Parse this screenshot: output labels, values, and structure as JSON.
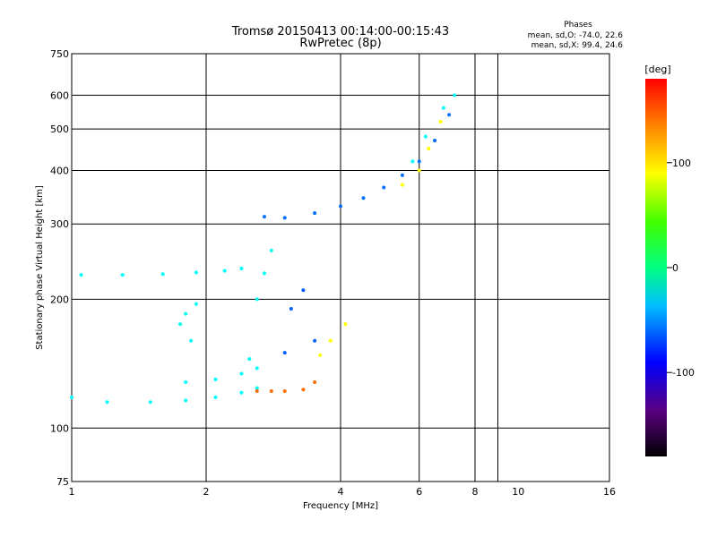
{
  "title": "Tromsø 20150413 00:14:00-00:15:43",
  "subtitle": "RwPretec (8p)",
  "stats": {
    "header": "Phases",
    "line_o": "mean, sd,O: -74.0, 22.6",
    "line_x": "mean, sd,X:  99.4, 24.6"
  },
  "chart_data": {
    "type": "scatter",
    "title": "Tromsø 20150413 00:14:00-00:15:43",
    "subtitle": "RwPretec (8p)",
    "xlabel": "Frequency [MHz]",
    "ylabel": "Stationary phase Virtual Height [km]",
    "x_scale": "log",
    "y_scale": "log",
    "xlim": [
      1,
      16
    ],
    "ylim": [
      75,
      750
    ],
    "x_ticks": [
      1,
      2,
      4,
      6,
      8,
      10,
      16
    ],
    "y_ticks": [
      75,
      100,
      200,
      300,
      400,
      500,
      600,
      750
    ],
    "grid_x": [
      2,
      4,
      6,
      8,
      9
    ],
    "grid_y": [
      100,
      200,
      300,
      400,
      500,
      600
    ],
    "colorbar": {
      "label": "[deg]",
      "range": [
        -180,
        180
      ],
      "ticks": [
        100,
        0,
        -100
      ],
      "colormap": "rainbow"
    },
    "series": [
      {
        "x": [
          1.0,
          1.2,
          1.5,
          1.8,
          2.1,
          2.4,
          2.6
        ],
        "y": [
          118,
          115,
          115,
          116,
          118,
          121,
          124
        ],
        "phase": -60
      },
      {
        "x": [
          1.05,
          1.3,
          1.6,
          1.9,
          2.2,
          2.4
        ],
        "y": [
          228,
          228,
          229,
          231,
          233,
          236
        ],
        "phase": -60
      },
      {
        "x": [
          1.8,
          2.1,
          2.4,
          2.6
        ],
        "y": [
          128,
          130,
          134,
          138
        ],
        "phase": -60
      },
      {
        "x": [
          1.75,
          1.8,
          1.85,
          1.9
        ],
        "y": [
          175,
          185,
          160,
          195
        ],
        "phase": -55
      },
      {
        "x": [
          2.5,
          2.6,
          2.7,
          2.8
        ],
        "y": [
          145,
          200,
          230,
          260
        ],
        "phase": -55
      },
      {
        "x": [
          2.6,
          2.8,
          3.0,
          3.3,
          3.5
        ],
        "y": [
          122,
          122,
          122,
          123,
          128
        ],
        "phase": 145
      },
      {
        "x": [
          3.0,
          3.1,
          3.3,
          3.5
        ],
        "y": [
          150,
          190,
          210,
          160
        ],
        "phase": -110
      },
      {
        "x": [
          3.6,
          3.8,
          4.1
        ],
        "y": [
          148,
          160,
          175
        ],
        "phase": 100
      },
      {
        "x": [
          2.7,
          3.0,
          3.5,
          4.0,
          4.5,
          5.0,
          5.5,
          6.0,
          6.5,
          7.0
        ],
        "y": [
          312,
          310,
          318,
          330,
          345,
          365,
          390,
          420,
          470,
          540
        ],
        "phase": -105
      },
      {
        "x": [
          5.5,
          6.0,
          6.3,
          6.7
        ],
        "y": [
          370,
          400,
          450,
          520
        ],
        "phase": 100
      },
      {
        "x": [
          5.8,
          6.2,
          6.8,
          7.2
        ],
        "y": [
          420,
          480,
          560,
          600
        ],
        "phase": -60
      }
    ]
  }
}
